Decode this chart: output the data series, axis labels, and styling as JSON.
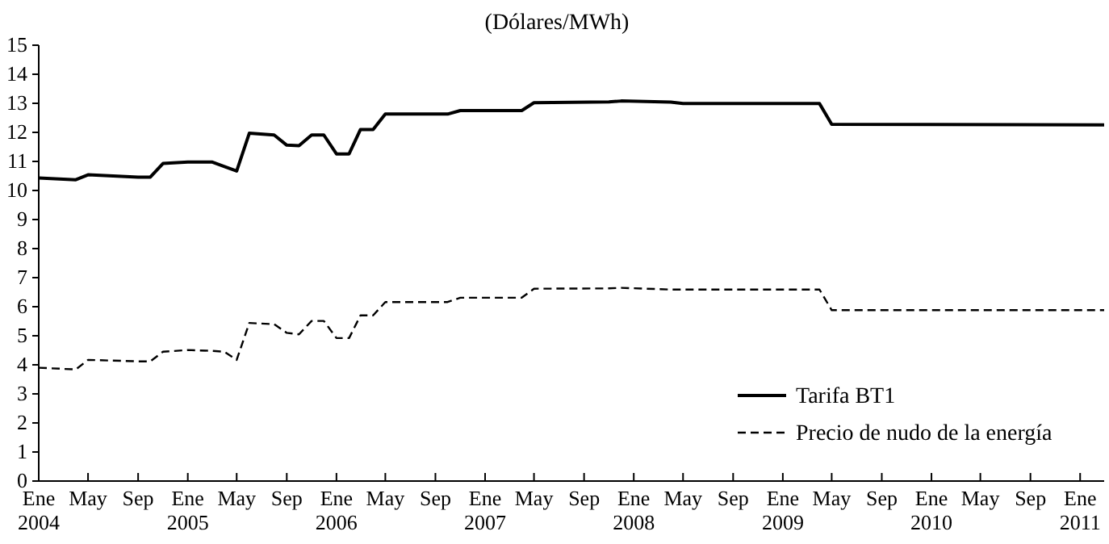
{
  "chart_data": {
    "type": "line",
    "title": "(Dólares/MWh)",
    "x": [
      "2004-01",
      "2004-04",
      "2004-05",
      "2004-09",
      "2004-10",
      "2004-11",
      "2005-01",
      "2005-03",
      "2005-04",
      "2005-05",
      "2005-06",
      "2005-08",
      "2005-09",
      "2005-10",
      "2005-11",
      "2005-12",
      "2006-01",
      "2006-02",
      "2006-03",
      "2006-04",
      "2006-05",
      "2006-10",
      "2006-11",
      "2007-04",
      "2007-05",
      "2007-11",
      "2007-12",
      "2008-04",
      "2008-05",
      "2009-04",
      "2009-05",
      "2011-03"
    ],
    "series": [
      {
        "name": "Tarifa BT1",
        "color": "#000000",
        "line_style": "solid",
        "values": [
          10.43,
          10.37,
          10.54,
          10.46,
          10.46,
          10.93,
          10.98,
          10.98,
          10.82,
          10.67,
          11.97,
          11.91,
          11.56,
          11.54,
          11.91,
          11.91,
          11.26,
          11.26,
          12.1,
          12.1,
          12.63,
          12.63,
          12.75,
          12.75,
          13.02,
          13.05,
          13.08,
          13.04,
          12.99,
          12.99,
          12.28,
          12.26
        ]
      },
      {
        "name": "Precio de nudo de la energía",
        "color": "#000000",
        "line_style": "dashed",
        "values": [
          3.9,
          3.84,
          4.17,
          4.12,
          4.12,
          4.45,
          4.51,
          4.48,
          4.45,
          4.17,
          5.44,
          5.4,
          5.1,
          5.05,
          5.51,
          5.51,
          4.92,
          4.92,
          5.7,
          5.7,
          6.16,
          6.16,
          6.31,
          6.31,
          6.62,
          6.63,
          6.65,
          6.59,
          6.59,
          6.59,
          5.88,
          5.88
        ]
      }
    ],
    "xlim": [
      "2004-01",
      "2011-03"
    ],
    "xticks": [
      {
        "value": "2004-01",
        "label": "Ene 2004"
      },
      {
        "value": "2004-05",
        "label": "May"
      },
      {
        "value": "2004-09",
        "label": "Sep"
      },
      {
        "value": "2005-01",
        "label": "Ene 2005"
      },
      {
        "value": "2005-05",
        "label": "May"
      },
      {
        "value": "2005-09",
        "label": "Sep"
      },
      {
        "value": "2006-01",
        "label": "Ene 2006"
      },
      {
        "value": "2006-05",
        "label": "May"
      },
      {
        "value": "2006-09",
        "label": "Sep"
      },
      {
        "value": "2007-01",
        "label": "Ene 2007"
      },
      {
        "value": "2007-05",
        "label": "May"
      },
      {
        "value": "2007-09",
        "label": "Sep"
      },
      {
        "value": "2008-01",
        "label": "Ene 2008"
      },
      {
        "value": "2008-05",
        "label": "May"
      },
      {
        "value": "2008-09",
        "label": "Sep"
      },
      {
        "value": "2009-01",
        "label": "Ene 2009"
      },
      {
        "value": "2009-05",
        "label": "May"
      },
      {
        "value": "2009-09",
        "label": "Sep"
      },
      {
        "value": "2010-01",
        "label": "Ene 2010"
      },
      {
        "value": "2010-05",
        "label": "May"
      },
      {
        "value": "2010-09",
        "label": "Sep"
      },
      {
        "value": "2011-01",
        "label": "Ene 2011"
      }
    ],
    "ylim": [
      0,
      15
    ],
    "yticks": [
      0,
      1,
      2,
      3,
      4,
      5,
      6,
      7,
      8,
      9,
      10,
      11,
      12,
      13,
      14,
      15
    ],
    "legend": "bottom right",
    "grid": false
  }
}
